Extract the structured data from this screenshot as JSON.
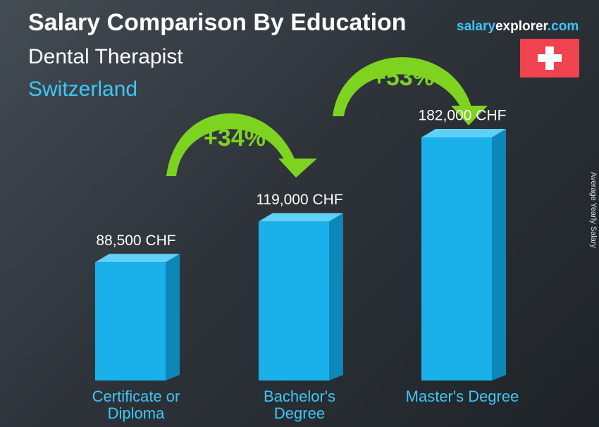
{
  "chart_data": {
    "type": "bar",
    "title": "Salary Comparison By Education",
    "subtitle": "Dental Therapist",
    "location": "Switzerland",
    "brand": {
      "salary": "salary",
      "explorer": "explorer",
      "com": ".com"
    },
    "y_axis_label": "Average Yearly Salary",
    "categories": [
      "Certificate or Diploma",
      "Bachelor's Degree",
      "Master's Degree"
    ],
    "values": [
      88500,
      119000,
      182000
    ],
    "value_labels": [
      "88,500 CHF",
      "119,000 CHF",
      "182,000 CHF"
    ],
    "color": "#1ab0ea",
    "annotations": [
      "+34%",
      "+53%"
    ]
  }
}
